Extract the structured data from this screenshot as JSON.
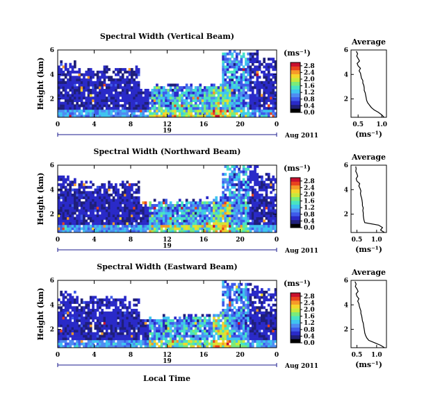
{
  "colors": {
    "background": "#ffffff",
    "frame": "#000000",
    "axis_line": "#1a1a8c",
    "colormap": [
      "#000000",
      "#1f1f7a",
      "#2a2ac8",
      "#3f5bea",
      "#4f8cf2",
      "#3fc4ef",
      "#49e4c2",
      "#7aeb7a",
      "#c8e83c",
      "#f4d62c",
      "#f59a28",
      "#e8431e",
      "#c8102e"
    ]
  },
  "shared": {
    "ylabel": "Height (km)",
    "colorbar_unit": "(ms⁻¹)",
    "date_label": "Aug 2011",
    "day_label": "19",
    "xlabel": "Local Time"
  },
  "chart_data": [
    {
      "type": "heatmap",
      "title": "Spectral Width (Vertical Beam)",
      "xlabel": "Local Time",
      "ylabel": "Height (km)",
      "x_ticks": [
        "0",
        "4",
        "8",
        "12",
        "16",
        "20",
        "0"
      ],
      "y_ticks": [
        "2",
        "4",
        "6"
      ],
      "xlim": [
        0,
        24
      ],
      "ylim": [
        0.5,
        6
      ],
      "colorbar": {
        "ticks": [
          "0.0",
          "0.4",
          "0.8",
          "1.2",
          "1.6",
          "2.0",
          "2.4",
          "2.8"
        ],
        "range": [
          0,
          3.0
        ],
        "unit": "(ms⁻¹)"
      },
      "profile": {
        "title": "Average",
        "x_ticks": [
          "0.5",
          "1.0"
        ],
        "y_ticks": [
          "2",
          "4",
          "6"
        ],
        "xlabel": "(ms⁻¹)",
        "xlim": [
          0.35,
          1.1
        ],
        "heights": [
          0.5,
          0.7,
          0.9,
          1.1,
          1.3,
          1.5,
          1.7,
          1.9,
          2.1,
          2.3,
          2.5,
          2.7,
          2.9,
          3.1,
          3.3,
          3.5,
          3.7,
          3.9,
          4.1,
          4.3,
          4.5,
          4.7,
          4.9,
          5.1,
          5.3,
          5.5,
          5.7,
          5.9
        ],
        "values": [
          1.05,
          1.0,
          0.93,
          0.84,
          0.78,
          0.74,
          0.7,
          0.68,
          0.67,
          0.66,
          0.65,
          0.63,
          0.63,
          0.62,
          0.6,
          0.6,
          0.57,
          0.56,
          0.55,
          0.52,
          0.55,
          0.5,
          0.48,
          0.53,
          0.5,
          0.47,
          0.49,
          0.46
        ]
      }
    },
    {
      "type": "heatmap",
      "title": "Spectral Width (Northward Beam)",
      "xlabel": "Local Time",
      "ylabel": "Height (km)",
      "x_ticks": [
        "0",
        "4",
        "8",
        "12",
        "16",
        "20",
        "0"
      ],
      "y_ticks": [
        "2",
        "4",
        "6"
      ],
      "xlim": [
        0,
        24
      ],
      "ylim": [
        0.5,
        6
      ],
      "colorbar": {
        "ticks": [
          "0.0",
          "0.4",
          "0.8",
          "1.2",
          "1.6",
          "2.0",
          "2.4",
          "2.8"
        ],
        "range": [
          0,
          3.0
        ],
        "unit": "(ms⁻¹)"
      },
      "profile": {
        "title": "Average",
        "x_ticks": [
          "0.5",
          "1.0"
        ],
        "y_ticks": [
          "2",
          "4",
          "6"
        ],
        "xlabel": "(ms⁻¹)",
        "xlim": [
          0.35,
          1.25
        ],
        "heights": [
          0.5,
          0.7,
          0.9,
          1.1,
          1.3,
          1.5,
          1.7,
          1.9,
          2.1,
          2.3,
          2.5,
          2.7,
          2.9,
          3.1,
          3.3,
          3.5,
          3.7,
          3.9,
          4.1,
          4.3,
          4.5,
          4.7,
          4.9,
          5.1,
          5.3,
          5.5,
          5.7,
          5.9
        ],
        "values": [
          1.2,
          1.1,
          1.15,
          1.05,
          0.7,
          0.68,
          0.67,
          0.66,
          0.66,
          0.65,
          0.66,
          0.64,
          0.64,
          0.63,
          0.62,
          0.6,
          0.59,
          0.6,
          0.58,
          0.55,
          0.57,
          0.5,
          0.48,
          0.52,
          0.5,
          0.47,
          0.48,
          0.47
        ]
      }
    },
    {
      "type": "heatmap",
      "title": "Spectral Width (Eastward Beam)",
      "xlabel": "Local Time",
      "ylabel": "Height (km)",
      "x_ticks": [
        "0",
        "4",
        "8",
        "12",
        "16",
        "20",
        "0"
      ],
      "y_ticks": [
        "2",
        "4",
        "6"
      ],
      "xlim": [
        0,
        24
      ],
      "ylim": [
        0.5,
        6
      ],
      "colorbar": {
        "ticks": [
          "0.0",
          "0.4",
          "0.8",
          "1.2",
          "1.6",
          "2.0",
          "2.4",
          "2.8"
        ],
        "range": [
          0,
          3.0
        ],
        "unit": "(ms⁻¹)"
      },
      "profile": {
        "title": "Average",
        "x_ticks": [
          "0.5",
          "1.0"
        ],
        "y_ticks": [
          "2",
          "4",
          "6"
        ],
        "xlabel": "(ms⁻¹)",
        "xlim": [
          0.35,
          1.25
        ],
        "heights": [
          0.5,
          0.7,
          0.9,
          1.1,
          1.3,
          1.5,
          1.7,
          1.9,
          2.1,
          2.3,
          2.5,
          2.7,
          2.9,
          3.1,
          3.3,
          3.5,
          3.7,
          3.9,
          4.1,
          4.3,
          4.5,
          4.7,
          4.9,
          5.1,
          5.3,
          5.5,
          5.7,
          5.9
        ],
        "values": [
          1.2,
          1.1,
          0.95,
          0.8,
          0.75,
          0.72,
          0.7,
          0.69,
          0.68,
          0.67,
          0.66,
          0.64,
          0.63,
          0.62,
          0.6,
          0.6,
          0.58,
          0.56,
          0.55,
          0.52,
          0.55,
          0.5,
          0.48,
          0.53,
          0.5,
          0.46,
          0.48,
          0.45
        ]
      }
    }
  ]
}
